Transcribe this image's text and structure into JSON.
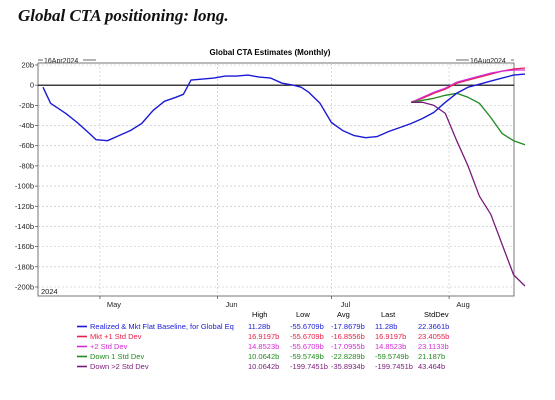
{
  "heading": "Global CTA positioning: long.",
  "chart_data": {
    "type": "line",
    "title": "Global CTA Estimates (Monthly)",
    "range_start": "16Apr2024",
    "range_end": "16Aug2024",
    "year_label": "2024",
    "xlabel": "",
    "ylabel": "",
    "ylim": [
      -200,
      20
    ],
    "yticks": [
      "20b",
      "0",
      "-20b",
      "-40b",
      "-60b",
      "-80b",
      "-100b",
      "-120b",
      "-140b",
      "-160b",
      "-180b",
      "-200b"
    ],
    "x_ticks": [
      {
        "label": "May",
        "date": "2024-05-01"
      },
      {
        "label": "Jun",
        "date": "2024-06-01"
      },
      {
        "label": "Jul",
        "date": "2024-07-01"
      },
      {
        "label": "Aug",
        "date": "2024-08-01"
      }
    ],
    "grid": true,
    "zero_line": true,
    "baseline": {
      "name": "Realized & Mkt Flat Baseline, for Global Eq",
      "color": "#1a1ad6",
      "points": [
        [
          "2024-04-16",
          -2
        ],
        [
          "2024-04-18",
          -18
        ],
        [
          "2024-04-22",
          -28
        ],
        [
          "2024-04-25",
          -37
        ],
        [
          "2024-04-28",
          -47
        ],
        [
          "2024-04-30",
          -54
        ],
        [
          "2024-05-03",
          -55
        ],
        [
          "2024-05-06",
          -50
        ],
        [
          "2024-05-09",
          -45
        ],
        [
          "2024-05-12",
          -38
        ],
        [
          "2024-05-15",
          -25
        ],
        [
          "2024-05-18",
          -16
        ],
        [
          "2024-05-21",
          -12
        ],
        [
          "2024-05-23",
          -9
        ],
        [
          "2024-05-25",
          5
        ],
        [
          "2024-05-28",
          6
        ],
        [
          "2024-05-31",
          7
        ],
        [
          "2024-06-03",
          9
        ],
        [
          "2024-06-06",
          9
        ],
        [
          "2024-06-09",
          10
        ],
        [
          "2024-06-12",
          8
        ],
        [
          "2024-06-15",
          7
        ],
        [
          "2024-06-18",
          2
        ],
        [
          "2024-06-21",
          0
        ],
        [
          "2024-06-23",
          -2
        ],
        [
          "2024-06-25",
          -7
        ],
        [
          "2024-06-28",
          -18
        ],
        [
          "2024-07-01",
          -37
        ],
        [
          "2024-07-04",
          -45
        ],
        [
          "2024-07-07",
          -50
        ],
        [
          "2024-07-10",
          -52
        ],
        [
          "2024-07-13",
          -51
        ],
        [
          "2024-07-16",
          -46
        ],
        [
          "2024-07-19",
          -42
        ],
        [
          "2024-07-22",
          -38
        ],
        [
          "2024-07-25",
          -33
        ],
        [
          "2024-07-28",
          -27
        ],
        [
          "2024-07-31",
          -17
        ],
        [
          "2024-08-03",
          -8
        ],
        [
          "2024-08-06",
          -2
        ],
        [
          "2024-08-09",
          1
        ],
        [
          "2024-08-12",
          4
        ],
        [
          "2024-08-15",
          7
        ],
        [
          "2024-08-18",
          10
        ],
        [
          "2024-08-21",
          11
        ]
      ]
    },
    "series": [
      {
        "name": "Mkt +1 Std Dev",
        "color": "#e8204a",
        "points": [
          [
            "2024-07-22",
            -17
          ],
          [
            "2024-07-25",
            -13
          ],
          [
            "2024-07-28",
            -8
          ],
          [
            "2024-07-31",
            -4
          ],
          [
            "2024-08-03",
            2
          ],
          [
            "2024-08-06",
            5
          ],
          [
            "2024-08-09",
            8
          ],
          [
            "2024-08-12",
            11
          ],
          [
            "2024-08-15",
            14
          ],
          [
            "2024-08-18",
            16
          ],
          [
            "2024-08-21",
            17
          ]
        ]
      },
      {
        "name": "+2 Std Dev",
        "color": "#d62ad6",
        "points": [
          [
            "2024-07-22",
            -17
          ],
          [
            "2024-07-25",
            -12
          ],
          [
            "2024-07-28",
            -7
          ],
          [
            "2024-07-31",
            -3
          ],
          [
            "2024-08-03",
            3
          ],
          [
            "2024-08-06",
            6
          ],
          [
            "2024-08-09",
            9
          ],
          [
            "2024-08-12",
            12
          ],
          [
            "2024-08-15",
            14
          ],
          [
            "2024-08-18",
            15
          ],
          [
            "2024-08-21",
            15
          ]
        ]
      },
      {
        "name": "Down 1 Std Dev",
        "color": "#1f8a1f",
        "points": [
          [
            "2024-07-22",
            -17
          ],
          [
            "2024-07-25",
            -15
          ],
          [
            "2024-07-28",
            -13
          ],
          [
            "2024-07-31",
            -10
          ],
          [
            "2024-08-03",
            -8
          ],
          [
            "2024-08-06",
            -12
          ],
          [
            "2024-08-09",
            -18
          ],
          [
            "2024-08-12",
            -32
          ],
          [
            "2024-08-15",
            -48
          ],
          [
            "2024-08-18",
            -55
          ],
          [
            "2024-08-21",
            -59
          ]
        ]
      },
      {
        "name": "Down >2 Std Dev",
        "color": "#7a1a7a",
        "points": [
          [
            "2024-07-22",
            -17
          ],
          [
            "2024-07-25",
            -17
          ],
          [
            "2024-07-28",
            -20
          ],
          [
            "2024-07-31",
            -28
          ],
          [
            "2024-08-03",
            -55
          ],
          [
            "2024-08-06",
            -80
          ],
          [
            "2024-08-09",
            -110
          ],
          [
            "2024-08-12",
            -128
          ],
          [
            "2024-08-15",
            -158
          ],
          [
            "2024-08-18",
            -188
          ],
          [
            "2024-08-21",
            -199
          ]
        ]
      }
    ],
    "stats": {
      "headers": [
        "High",
        "Low",
        "Avg",
        "Last",
        "StdDev"
      ],
      "rows": [
        {
          "name": "Realized & Mkt Flat Baseline, for Global Eq",
          "color": "#1a1ad6",
          "values": [
            "11.28b",
            "-55.6709b",
            "-17.8679b",
            "11.28b",
            "22.3661b"
          ]
        },
        {
          "name": "Mkt +1 Std Dev",
          "color": "#e8204a",
          "values": [
            "16.9197b",
            "-55.6709b",
            "-16.8556b",
            "16.9197b",
            "23.4055b"
          ]
        },
        {
          "name": "+2 Std Dev",
          "color": "#d62ad6",
          "values": [
            "14.8523b",
            "-55.6709b",
            "-17.0955b",
            "14.8523b",
            "23.1133b"
          ]
        },
        {
          "name": "Down 1 Std Dev",
          "color": "#1f8a1f",
          "values": [
            "10.0642b",
            "-59.5749b",
            "-22.8289b",
            "-59.5749b",
            "21.187b"
          ]
        },
        {
          "name": "Down >2 Std Dev",
          "color": "#7a1a7a",
          "values": [
            "10.0642b",
            "-199.7451b",
            "-35.8934b",
            "-199.7451b",
            "43.464b"
          ]
        }
      ]
    }
  }
}
